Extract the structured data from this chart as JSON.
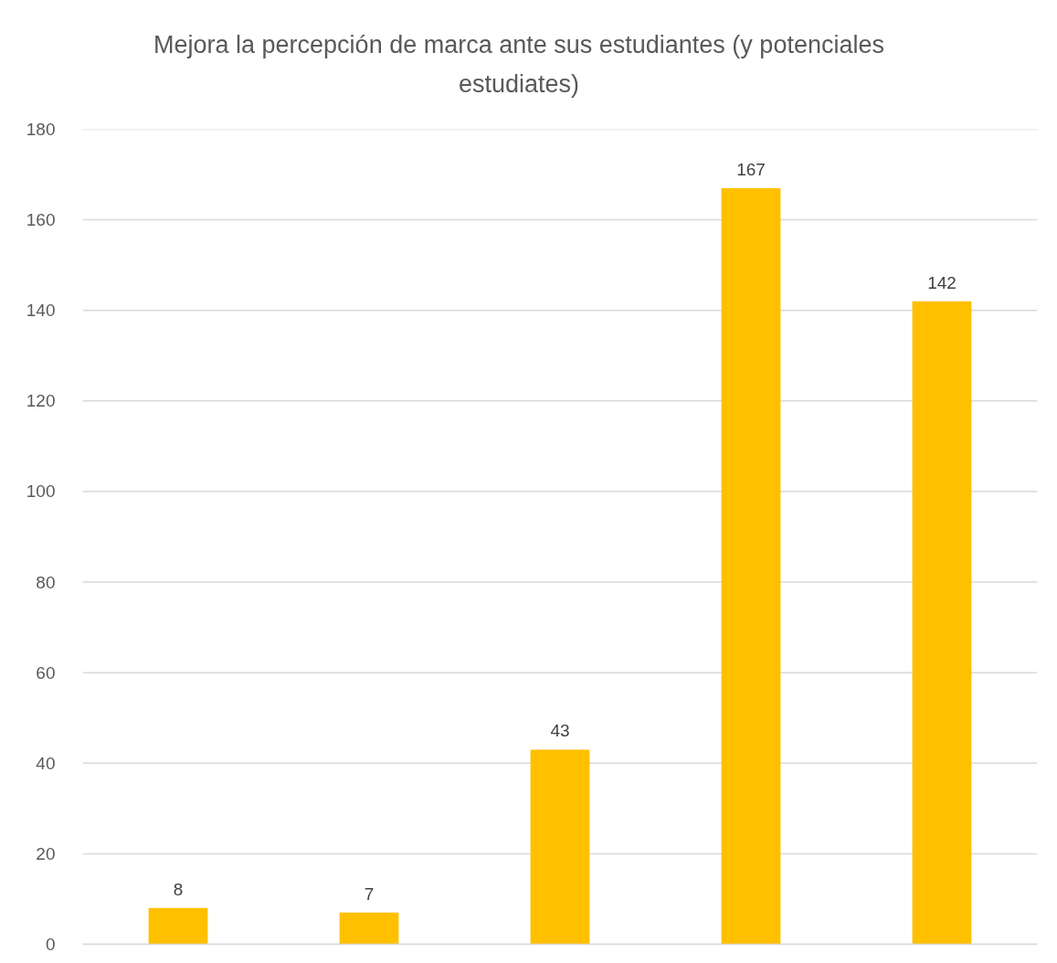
{
  "chart_data": {
    "type": "bar",
    "title": "Mejora la percepción de marca ante sus estudiantes (y potenciales estudiates)",
    "categories": [
      null,
      null,
      null,
      null,
      null
    ],
    "values": [
      8,
      7,
      43,
      167,
      142
    ],
    "color": "#ffc000",
    "ylim": [
      0,
      180
    ],
    "yticks": [
      0,
      20,
      40,
      60,
      80,
      100,
      120,
      140,
      160,
      180
    ],
    "grid": "y",
    "data_labels": true
  }
}
